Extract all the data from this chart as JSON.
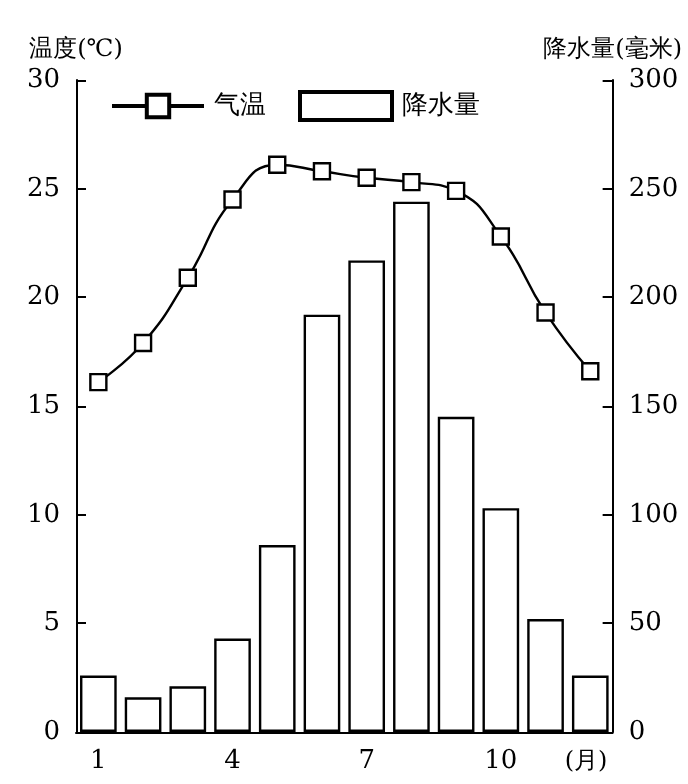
{
  "chart_data": {
    "type": "bar",
    "xlabel": "(月)",
    "ylabel": "温度(℃)",
    "y2label": "降水量(毫米)",
    "categories": [
      "1",
      null,
      null,
      "4",
      null,
      null,
      "7",
      null,
      null,
      "10",
      null,
      null
    ],
    "series": [
      {
        "name": "气温",
        "type": "line",
        "color": "#000000",
        "axis": "y",
        "values": [
          16.1,
          17.9,
          20.9,
          24.5,
          26.1,
          25.8,
          25.5,
          25.3,
          24.9,
          22.8,
          19.3,
          16.6
        ]
      },
      {
        "name": "降水量",
        "color": "#ffffff",
        "axis": "y2",
        "values": [
          26,
          16,
          21,
          43,
          86,
          192,
          217,
          244,
          145,
          103,
          52,
          26
        ]
      }
    ],
    "ylim": [
      0,
      30
    ],
    "yticks": [
      0,
      5,
      10,
      15,
      20,
      25,
      30
    ],
    "y2lim": [
      0,
      300
    ],
    "y2ticks": [
      0,
      50,
      100,
      150,
      200,
      250,
      300
    ],
    "grid": false,
    "legend": "top left",
    "marker": "square",
    "line_style": "solid"
  }
}
